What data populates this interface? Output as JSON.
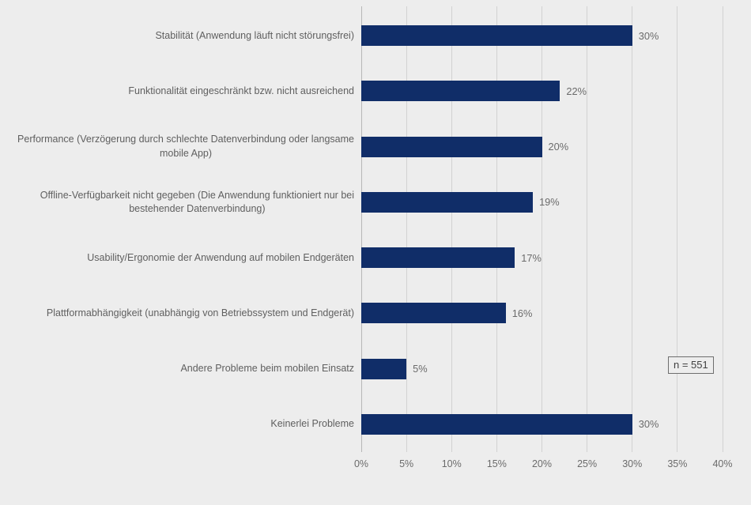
{
  "chart_data": {
    "type": "bar",
    "orientation": "horizontal",
    "title": "",
    "xlabel": "",
    "ylabel": "",
    "grid": true,
    "legend": "none",
    "xlim": [
      0,
      40
    ],
    "x_ticks": [
      "0%",
      "5%",
      "10%",
      "15%",
      "20%",
      "25%",
      "30%",
      "35%",
      "40%"
    ],
    "categories": [
      "Stabilität (Anwendung läuft nicht störungsfrei)",
      "Funktionalität eingeschränkt bzw. nicht ausreichend",
      "Performance (Verzögerung durch schlechte Datenverbindung oder langsame\nmobile App)",
      "Offline-Verfügbarkeit nicht gegeben (Die Anwendung funktioniert nur bei\nbestehender Datenverbindung)",
      "Usability/Ergonomie der Anwendung auf mobilen Endgeräten",
      "Plattformabhängigkeit (unabhängig von Betriebssystem und Endgerät)",
      "Andere Probleme beim mobilen Einsatz",
      "Keinerlei Probleme"
    ],
    "values": [
      30,
      22,
      20,
      19,
      17,
      16,
      5,
      30
    ],
    "value_labels": [
      "30%",
      "22%",
      "20%",
      "19%",
      "17%",
      "16%",
      "5%",
      "30%"
    ],
    "annotation": "n = 551",
    "colors": {
      "bar": "#102d68",
      "background": "#ededed",
      "gridline": "#d2d2d2",
      "axis_line": "#b7b7b7",
      "label_text": "#5f5f5f",
      "value_text": "#6b6b6b",
      "annotation_text": "#3f3f3f",
      "annotation_border": "#6e6e6e"
    }
  }
}
